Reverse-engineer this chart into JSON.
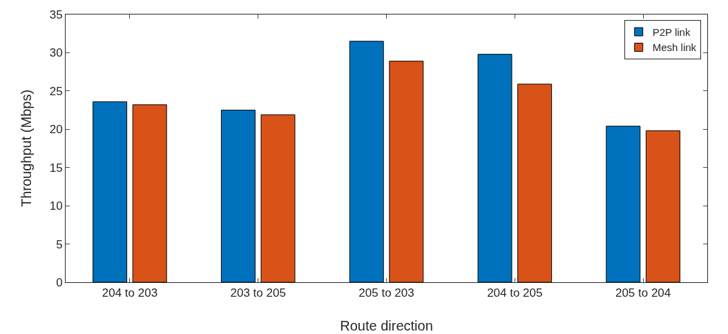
{
  "chart_data": {
    "type": "bar",
    "xlabel": "Route direction",
    "ylabel": "Throughput (Mbps)",
    "categories": [
      "204 to 203",
      "203 to 205",
      "205 to 203",
      "204 to 205",
      "205 to 204"
    ],
    "series": [
      {
        "name": "P2P link",
        "color": "#0072bd",
        "values": [
          23.6,
          22.5,
          31.5,
          29.8,
          20.4
        ]
      },
      {
        "name": "Mesh link",
        "color": "#d95319",
        "values": [
          23.2,
          21.9,
          28.9,
          25.9,
          19.8
        ]
      }
    ],
    "ylim": [
      0,
      35
    ],
    "yticks": [
      0,
      5,
      10,
      15,
      20,
      25,
      30,
      35
    ],
    "grid": false,
    "legend": "top right"
  }
}
